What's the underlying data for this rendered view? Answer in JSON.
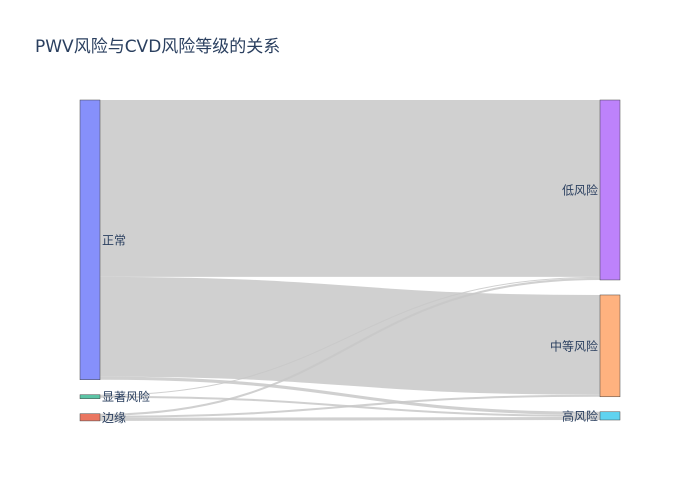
{
  "chart_data": {
    "type": "sankey",
    "title": "PWV风险与CVD风险等级的关系",
    "link_color": "#c8c8c8",
    "source_nodes": [
      {
        "id": "normal",
        "label": "正常",
        "color": "#8690fb"
      },
      {
        "id": "significant",
        "label": "显著风险",
        "color": "#5cc4a5"
      },
      {
        "id": "borderline",
        "label": "边缘",
        "color": "#ea7661"
      }
    ],
    "target_nodes": [
      {
        "id": "low",
        "label": "低风险",
        "color": "#bd82fb"
      },
      {
        "id": "medium",
        "label": "中等风险",
        "color": "#ffb27f"
      },
      {
        "id": "high",
        "label": "高风险",
        "color": "#60d3f0"
      }
    ],
    "links": [
      {
        "source": "normal",
        "target": "low",
        "value": 172
      },
      {
        "source": "normal",
        "target": "medium",
        "value": 97
      },
      {
        "source": "normal",
        "target": "high",
        "value": 3
      },
      {
        "source": "significant",
        "target": "low",
        "value": 1
      },
      {
        "source": "significant",
        "target": "high",
        "value": 2
      },
      {
        "source": "borderline",
        "target": "low",
        "value": 2
      },
      {
        "source": "borderline",
        "target": "medium",
        "value": 2
      },
      {
        "source": "borderline",
        "target": "high",
        "value": 3
      }
    ]
  }
}
